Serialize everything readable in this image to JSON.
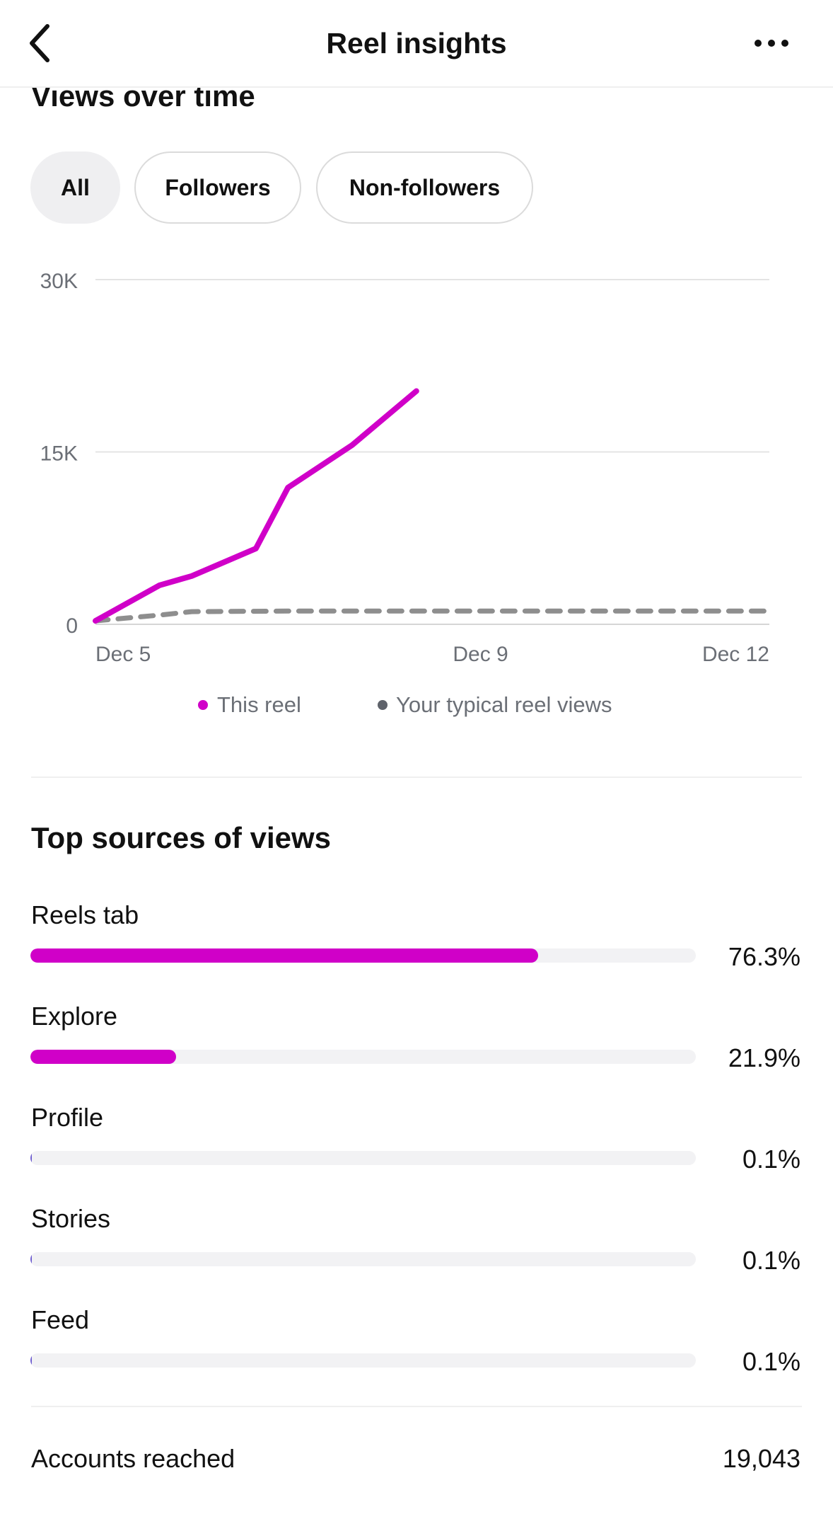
{
  "header": {
    "title": "Reel insights",
    "back_icon": "chevron-left-icon",
    "more_icon": "more-horizontal-icon"
  },
  "views_over_time": {
    "title": "Views over time",
    "filters": [
      {
        "label": "All",
        "selected": true
      },
      {
        "label": "Followers",
        "selected": false
      },
      {
        "label": "Non-followers",
        "selected": false
      }
    ]
  },
  "chart_data": {
    "type": "line",
    "x_range": [
      "Dec 5",
      "Dec 12"
    ],
    "x_ticks": [
      "Dec 5",
      "Dec 9",
      "Dec 12"
    ],
    "y_ticks": [
      {
        "label": "30K",
        "value": 30000
      },
      {
        "label": "15K",
        "value": 15000
      },
      {
        "label": "0",
        "value": 0
      }
    ],
    "ylim": [
      0,
      30000
    ],
    "grid": true,
    "legend_position": "bottom",
    "series": [
      {
        "name": "This reel",
        "color": "#d000c8",
        "style": "solid",
        "points": [
          {
            "x": "Dec 5",
            "y": 300
          },
          {
            "x": "Dec 5 16:00",
            "y": 3400
          },
          {
            "x": "Dec 6",
            "y": 4200
          },
          {
            "x": "Dec 6 16:00",
            "y": 6600
          },
          {
            "x": "Dec 7",
            "y": 11900
          },
          {
            "x": "Dec 7 16:00",
            "y": 15600
          },
          {
            "x": "Dec 8 08:00",
            "y": 20300
          }
        ]
      },
      {
        "name": "Your typical reel views",
        "color": "#8e8e8e",
        "legend_color": "#5f636b",
        "style": "dashed",
        "points": [
          {
            "x": "Dec 5",
            "y": 300
          },
          {
            "x": "Dec 5 16:00",
            "y": 800
          },
          {
            "x": "Dec 6",
            "y": 1100
          },
          {
            "x": "Dec 7",
            "y": 1150
          },
          {
            "x": "Dec 9",
            "y": 1150
          },
          {
            "x": "Dec 12",
            "y": 1150
          }
        ]
      }
    ]
  },
  "top_sources": {
    "title": "Top sources of views",
    "accent_color": "#d000c8",
    "items": [
      {
        "label": "Reels tab",
        "percent": "76.3%",
        "value": 76.3
      },
      {
        "label": "Explore",
        "percent": "21.9%",
        "value": 21.9
      },
      {
        "label": "Profile",
        "percent": "0.1%",
        "value": 0.1
      },
      {
        "label": "Stories",
        "percent": "0.1%",
        "value": 0.1
      },
      {
        "label": "Feed",
        "percent": "0.1%",
        "value": 0.1
      }
    ]
  },
  "accounts_reached": {
    "label": "Accounts reached",
    "value": "19,043"
  }
}
